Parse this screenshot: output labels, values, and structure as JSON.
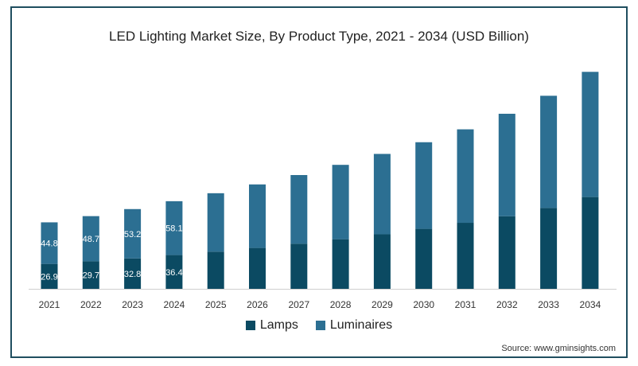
{
  "chart_data": {
    "type": "bar",
    "stacked": true,
    "title": "LED Lighting Market Size, By Product Type, 2021 - 2034 (USD Billion)",
    "xlabel": "",
    "ylabel": "",
    "categories": [
      "2021",
      "2022",
      "2023",
      "2024",
      "2025",
      "2026",
      "2027",
      "2028",
      "2029",
      "2030",
      "2031",
      "2032",
      "2033",
      "2034"
    ],
    "series": [
      {
        "name": "Lamps",
        "color": "#0b4a62",
        "values": [
          26.9,
          29.7,
          32.8,
          36.4,
          40.1,
          44.1,
          48.6,
          53.5,
          58.8,
          64.7,
          71.2,
          78.3,
          87.2,
          99.0
        ]
      },
      {
        "name": "Luminaires",
        "color": "#2c6f92",
        "values": [
          44.8,
          48.7,
          53.2,
          58.1,
          63.0,
          68.5,
          74.1,
          80.2,
          86.7,
          93.4,
          100.8,
          110.5,
          121.0,
          135.0
        ]
      }
    ],
    "data_labels": [
      {
        "category": "2021",
        "lamps": "26.9",
        "luminaires": "44.8"
      },
      {
        "category": "2022",
        "lamps": "29.7",
        "luminaires": "48.7"
      },
      {
        "category": "2023",
        "lamps": "32.8",
        "luminaires": "53.2"
      },
      {
        "category": "2024",
        "lamps": "36.4",
        "luminaires": "58.1"
      }
    ],
    "ylim": [
      0,
      260
    ],
    "grid": false,
    "legend": "bottom"
  },
  "source": "Source: www.gminsights.com"
}
